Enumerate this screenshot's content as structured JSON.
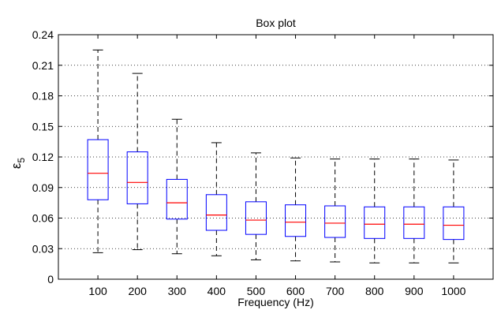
{
  "chart_data": {
    "type": "box",
    "title": "Box plot",
    "xlabel": "Frequency (Hz)",
    "ylabel": "ε",
    "ylabel_subscript": "5",
    "categories": [
      "100",
      "200",
      "300",
      "400",
      "500",
      "600",
      "700",
      "800",
      "900",
      "1000"
    ],
    "ylim": [
      0,
      0.24
    ],
    "yticks": [
      0,
      0.03,
      0.06,
      0.09,
      0.12,
      0.15,
      0.18,
      0.21,
      0.24
    ],
    "ytick_labels": [
      "0",
      "0.03",
      "0.06",
      "0.09",
      "0.12",
      "0.15",
      "0.18",
      "0.21",
      "0.24"
    ],
    "grid": "horizontal dotted",
    "colors": {
      "box": "#0000ff",
      "median": "#ff0000",
      "whisker": "#000000",
      "grid": "#000000"
    },
    "boxes": [
      {
        "category": "100",
        "whisker_low": 0.026,
        "q1": 0.078,
        "median": 0.104,
        "q3": 0.137,
        "whisker_high": 0.225
      },
      {
        "category": "200",
        "whisker_low": 0.029,
        "q1": 0.074,
        "median": 0.095,
        "q3": 0.125,
        "whisker_high": 0.202
      },
      {
        "category": "300",
        "whisker_low": 0.025,
        "q1": 0.059,
        "median": 0.075,
        "q3": 0.098,
        "whisker_high": 0.157
      },
      {
        "category": "400",
        "whisker_low": 0.023,
        "q1": 0.048,
        "median": 0.063,
        "q3": 0.083,
        "whisker_high": 0.134
      },
      {
        "category": "500",
        "whisker_low": 0.019,
        "q1": 0.044,
        "median": 0.058,
        "q3": 0.076,
        "whisker_high": 0.124
      },
      {
        "category": "600",
        "whisker_low": 0.018,
        "q1": 0.042,
        "median": 0.056,
        "q3": 0.073,
        "whisker_high": 0.119
      },
      {
        "category": "700",
        "whisker_low": 0.017,
        "q1": 0.041,
        "median": 0.055,
        "q3": 0.072,
        "whisker_high": 0.118
      },
      {
        "category": "800",
        "whisker_low": 0.016,
        "q1": 0.04,
        "median": 0.054,
        "q3": 0.071,
        "whisker_high": 0.118
      },
      {
        "category": "900",
        "whisker_low": 0.016,
        "q1": 0.04,
        "median": 0.054,
        "q3": 0.071,
        "whisker_high": 0.118
      },
      {
        "category": "1000",
        "whisker_low": 0.016,
        "q1": 0.039,
        "median": 0.053,
        "q3": 0.071,
        "whisker_high": 0.117
      }
    ]
  }
}
